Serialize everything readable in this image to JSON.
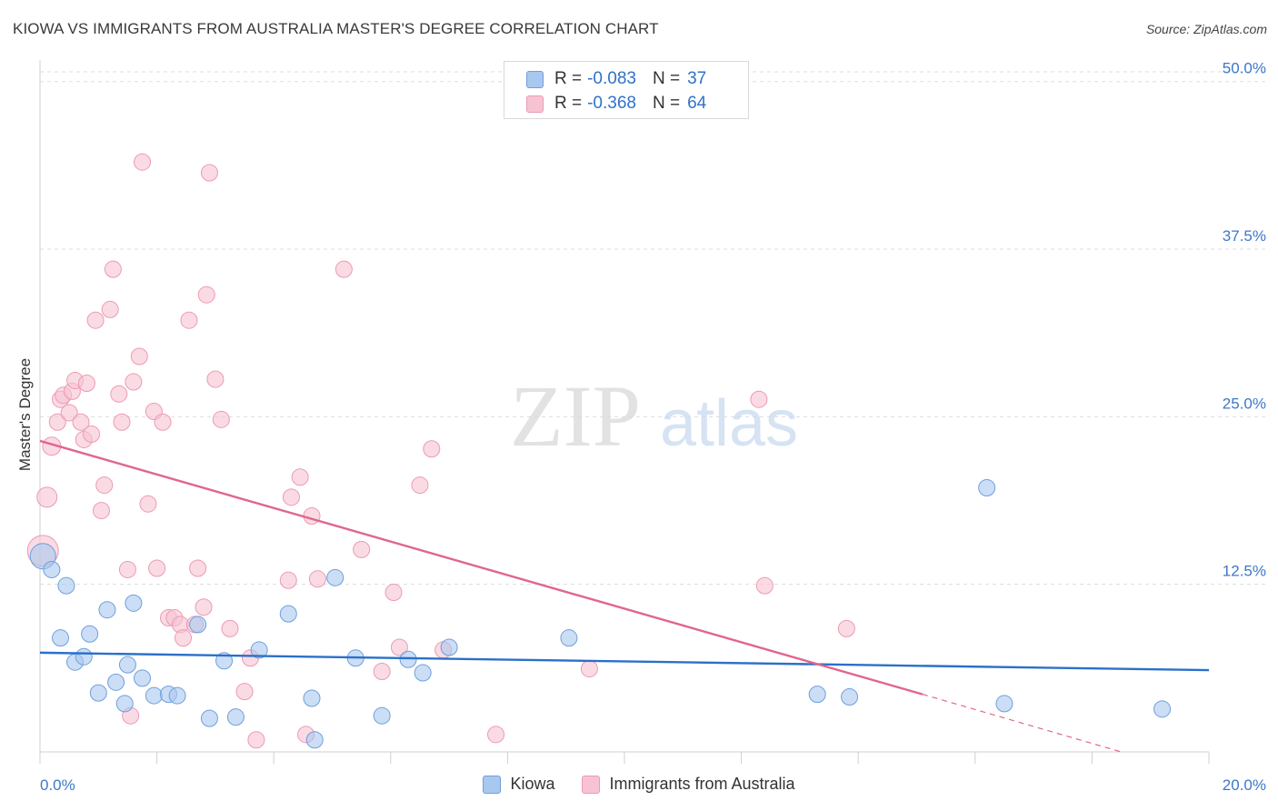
{
  "title": "KIOWA VS IMMIGRANTS FROM AUSTRALIA MASTER'S DEGREE CORRELATION CHART",
  "source": "Source: ZipAtlas.com",
  "watermark": {
    "zip": "ZIP",
    "atlas": "atlas"
  },
  "legend_top": [
    {
      "r_label": "R =",
      "r_value": "-0.083",
      "n_label": "N =",
      "n_value": "37"
    },
    {
      "r_label": "R =",
      "r_value": "-0.368",
      "n_label": "N =",
      "n_value": "64"
    }
  ],
  "legend_bottom": [
    {
      "label": "Kiowa"
    },
    {
      "label": "Immigrants from Australia"
    }
  ],
  "colors": {
    "blue_fill": "#a9c8ef",
    "blue_stroke": "#6f9fdc",
    "blue_line": "#2b70c9",
    "pink_fill": "#f7c3d2",
    "pink_stroke": "#ec9ab3",
    "pink_line": "#e0668f",
    "tick_label": "#3d78c9",
    "grid": "#dddddd"
  },
  "chart_data": {
    "type": "scatter",
    "xlabel": "",
    "ylabel": "Master's Degree",
    "xlim": [
      0,
      20
    ],
    "ylim": [
      0,
      51
    ],
    "x_tick_labels": [
      {
        "value": 0,
        "label": "0.0%"
      },
      {
        "value": 20,
        "label": "20.0%"
      }
    ],
    "y_tick_labels": [
      {
        "value": 12.5,
        "label": "12.5%"
      },
      {
        "value": 25,
        "label": "25.0%"
      },
      {
        "value": 37.5,
        "label": "37.5%"
      },
      {
        "value": 50,
        "label": "50.0%"
      }
    ],
    "series": [
      {
        "name": "Kiowa",
        "color_key": "blue",
        "points": [
          [
            0.05,
            14.6,
            14
          ],
          [
            0.2,
            13.6,
            9
          ],
          [
            0.35,
            8.5,
            9
          ],
          [
            0.45,
            12.4,
            9
          ],
          [
            0.6,
            6.7,
            9
          ],
          [
            0.75,
            7.1,
            9
          ],
          [
            0.85,
            8.8,
            9
          ],
          [
            1.0,
            4.4,
            9
          ],
          [
            1.15,
            10.6,
            9
          ],
          [
            1.3,
            5.2,
            9
          ],
          [
            1.45,
            3.6,
            9
          ],
          [
            1.5,
            6.5,
            9
          ],
          [
            1.6,
            11.1,
            9
          ],
          [
            1.75,
            5.5,
            9
          ],
          [
            1.95,
            4.2,
            9
          ],
          [
            2.2,
            4.3,
            9
          ],
          [
            2.35,
            4.2,
            9
          ],
          [
            2.7,
            9.5,
            9
          ],
          [
            2.9,
            2.5,
            9
          ],
          [
            3.15,
            6.8,
            9
          ],
          [
            3.35,
            2.6,
            9
          ],
          [
            3.75,
            7.6,
            9
          ],
          [
            4.25,
            10.3,
            9
          ],
          [
            4.65,
            4.0,
            9
          ],
          [
            4.7,
            0.9,
            9
          ],
          [
            5.05,
            13.0,
            9
          ],
          [
            5.4,
            7.0,
            9
          ],
          [
            5.85,
            2.7,
            9
          ],
          [
            6.3,
            6.9,
            9
          ],
          [
            6.55,
            5.9,
            9
          ],
          [
            7.0,
            7.8,
            9
          ],
          [
            9.05,
            8.5,
            9
          ],
          [
            13.3,
            4.3,
            9
          ],
          [
            13.85,
            4.1,
            9
          ],
          [
            16.2,
            19.7,
            9
          ],
          [
            16.5,
            3.6,
            9
          ],
          [
            19.2,
            3.2,
            9
          ]
        ]
      },
      {
        "name": "Immigrants from Australia",
        "color_key": "pink",
        "points": [
          [
            0.05,
            15.0,
            17
          ],
          [
            0.12,
            19.0,
            11
          ],
          [
            0.2,
            22.8,
            10
          ],
          [
            0.3,
            24.6,
            9
          ],
          [
            0.35,
            26.3,
            9
          ],
          [
            0.4,
            26.6,
            9
          ],
          [
            0.5,
            25.3,
            9
          ],
          [
            0.55,
            26.9,
            9
          ],
          [
            0.6,
            27.7,
            9
          ],
          [
            0.7,
            24.6,
            9
          ],
          [
            0.75,
            23.3,
            9
          ],
          [
            0.8,
            27.5,
            9
          ],
          [
            0.88,
            23.7,
            9
          ],
          [
            0.95,
            32.2,
            9
          ],
          [
            1.05,
            18.0,
            9
          ],
          [
            1.1,
            19.9,
            9
          ],
          [
            1.2,
            33.0,
            9
          ],
          [
            1.25,
            36.0,
            9
          ],
          [
            1.35,
            26.7,
            9
          ],
          [
            1.4,
            24.6,
            9
          ],
          [
            1.5,
            13.6,
            9
          ],
          [
            1.55,
            2.7,
            9
          ],
          [
            1.6,
            27.6,
            9
          ],
          [
            1.7,
            29.5,
            9
          ],
          [
            1.75,
            44.0,
            9
          ],
          [
            1.85,
            18.5,
            9
          ],
          [
            1.95,
            25.4,
            9
          ],
          [
            2.0,
            13.7,
            9
          ],
          [
            2.1,
            24.6,
            9
          ],
          [
            2.2,
            10.0,
            9
          ],
          [
            2.3,
            10.0,
            9
          ],
          [
            2.4,
            9.5,
            9
          ],
          [
            2.45,
            8.5,
            9
          ],
          [
            2.55,
            32.2,
            9
          ],
          [
            2.65,
            9.5,
            9
          ],
          [
            2.7,
            13.7,
            9
          ],
          [
            2.8,
            10.8,
            9
          ],
          [
            2.85,
            34.1,
            9
          ],
          [
            2.9,
            43.2,
            9
          ],
          [
            3.0,
            27.8,
            9
          ],
          [
            3.1,
            24.8,
            9
          ],
          [
            3.25,
            9.2,
            9
          ],
          [
            3.5,
            4.5,
            9
          ],
          [
            3.6,
            7.0,
            9
          ],
          [
            3.7,
            0.9,
            9
          ],
          [
            4.25,
            12.8,
            9
          ],
          [
            4.3,
            19.0,
            9
          ],
          [
            4.45,
            20.5,
            9
          ],
          [
            4.55,
            1.3,
            9
          ],
          [
            4.65,
            17.6,
            9
          ],
          [
            4.75,
            12.9,
            9
          ],
          [
            5.2,
            36.0,
            9
          ],
          [
            5.5,
            15.1,
            9
          ],
          [
            5.85,
            6.0,
            9
          ],
          [
            6.05,
            11.9,
            9
          ],
          [
            6.15,
            7.8,
            9
          ],
          [
            6.5,
            19.9,
            9
          ],
          [
            6.7,
            22.6,
            9
          ],
          [
            6.9,
            7.6,
            9
          ],
          [
            7.8,
            1.3,
            9
          ],
          [
            9.4,
            6.2,
            9
          ],
          [
            12.3,
            26.3,
            9
          ],
          [
            12.4,
            12.4,
            9
          ],
          [
            13.8,
            9.2,
            9
          ]
        ]
      }
    ],
    "trend_lines": [
      {
        "name": "Kiowa trend",
        "color_key": "blue",
        "from": [
          0,
          7.4
        ],
        "to": [
          20,
          6.1
        ],
        "dashed_to": null
      },
      {
        "name": "Immigrants from Australia trend",
        "color_key": "pink",
        "from": [
          0,
          23.2
        ],
        "to": [
          15.1,
          4.3
        ],
        "dashed_to": [
          18.5,
          0
        ]
      }
    ]
  }
}
